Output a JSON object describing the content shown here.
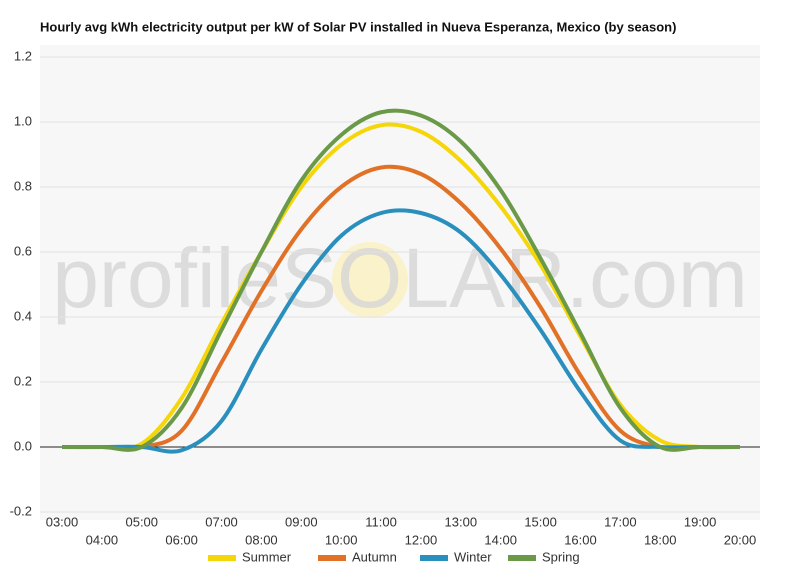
{
  "chart_data": {
    "type": "line",
    "title": "Hourly avg kWh electricity output per kW of Solar PV installed in Nueva Esperanza, Mexico (by season)",
    "watermark": "profileSOLAR.com",
    "categories": [
      "03:00",
      "04:00",
      "05:00",
      "06:00",
      "07:00",
      "08:00",
      "09:00",
      "10:00",
      "11:00",
      "12:00",
      "13:00",
      "14:00",
      "15:00",
      "16:00",
      "17:00",
      "18:00",
      "19:00",
      "20:00"
    ],
    "series": [
      {
        "name": "Summer",
        "color": "#f5d60a",
        "values": [
          0,
          0,
          0.01,
          0.15,
          0.38,
          0.6,
          0.8,
          0.93,
          0.99,
          0.97,
          0.88,
          0.74,
          0.56,
          0.34,
          0.13,
          0.02,
          0,
          0
        ]
      },
      {
        "name": "Autumn",
        "color": "#e07126",
        "values": [
          0,
          0,
          0,
          0.05,
          0.26,
          0.48,
          0.67,
          0.8,
          0.86,
          0.84,
          0.75,
          0.61,
          0.43,
          0.22,
          0.05,
          0,
          0,
          0
        ]
      },
      {
        "name": "Winter",
        "color": "#2a8fbd",
        "values": [
          0,
          0,
          0,
          -0.01,
          0.08,
          0.3,
          0.5,
          0.65,
          0.72,
          0.72,
          0.66,
          0.53,
          0.36,
          0.17,
          0.02,
          0,
          0,
          0
        ]
      },
      {
        "name": "Spring",
        "color": "#6a9a48",
        "values": [
          0,
          0,
          0,
          0.12,
          0.36,
          0.6,
          0.82,
          0.96,
          1.03,
          1.02,
          0.94,
          0.79,
          0.58,
          0.35,
          0.12,
          0,
          0,
          0
        ]
      }
    ],
    "ylim": [
      -0.2,
      1.2
    ],
    "yticks": [
      {
        "value": -0.2,
        "label": "-0.2"
      },
      {
        "value": 0,
        "label": "0.0"
      },
      0.2,
      0.4,
      0.6,
      0.8,
      {
        "value": 1,
        "label": "1.0"
      },
      1.2
    ],
    "grid": true
  }
}
